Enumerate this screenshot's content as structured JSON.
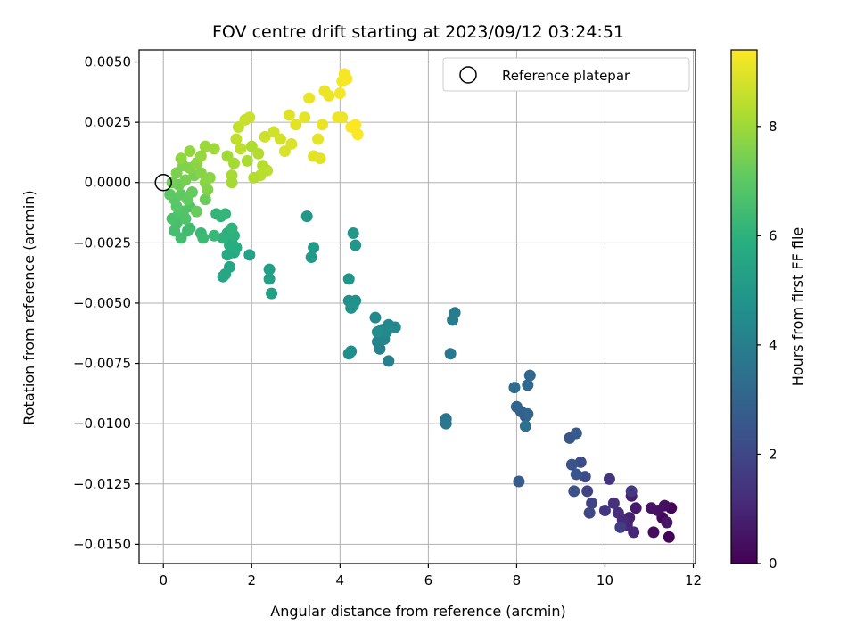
{
  "chart_data": {
    "type": "scatter",
    "title": "FOV centre drift starting at 2023/09/12 03:24:51",
    "xlabel": "Angular distance from reference (arcmin)",
    "ylabel": "Rotation from reference (arcmin)",
    "xlim": [
      -0.55,
      12.05
    ],
    "ylim": [
      -0.0158,
      0.0055
    ],
    "grid": true,
    "x_ticks": [
      0,
      2,
      4,
      6,
      8,
      10,
      12
    ],
    "x_tick_labels": [
      "0",
      "2",
      "4",
      "6",
      "8",
      "10",
      "12"
    ],
    "y_ticks": [
      0.005,
      0.0025,
      0.0,
      -0.0025,
      -0.005,
      -0.0075,
      -0.01,
      -0.0125,
      -0.015
    ],
    "y_tick_labels": [
      "0.0050",
      "0.0025",
      "0.0000",
      "−0.0025",
      "−0.0050",
      "−0.0075",
      "−0.0100",
      "−0.0125",
      "−0.0150"
    ],
    "colorbar": {
      "label": "Hours from first FF file",
      "colormap": "viridis",
      "range": [
        0,
        9.4
      ],
      "ticks": [
        0,
        2,
        4,
        6,
        8
      ],
      "tick_labels": [
        "0",
        "2",
        "4",
        "6",
        "8"
      ]
    },
    "legend": {
      "position": "top-right",
      "entries": [
        "Reference platepar"
      ]
    },
    "reference_point": {
      "x": 0.0,
      "y": 0.0
    },
    "points": [
      [
        11.5,
        -0.0135,
        0.05
      ],
      [
        11.45,
        -0.0147,
        0.1
      ],
      [
        11.3,
        -0.0139,
        0.2
      ],
      [
        11.1,
        -0.0145,
        0.3
      ],
      [
        11.35,
        -0.0134,
        0.35
      ],
      [
        11.2,
        -0.0136,
        0.45
      ],
      [
        11.05,
        -0.0135,
        0.5
      ],
      [
        11.4,
        -0.0141,
        0.6
      ],
      [
        10.7,
        -0.0135,
        0.7
      ],
      [
        10.6,
        -0.013,
        0.8
      ],
      [
        10.55,
        -0.0139,
        0.9
      ],
      [
        10.5,
        -0.0142,
        1.0
      ],
      [
        10.65,
        -0.0145,
        1.05
      ],
      [
        10.4,
        -0.014,
        1.1
      ],
      [
        10.3,
        -0.0137,
        1.2
      ],
      [
        10.2,
        -0.0133,
        1.3
      ],
      [
        10.1,
        -0.0123,
        1.4
      ],
      [
        10.0,
        -0.0136,
        1.5
      ],
      [
        10.6,
        -0.0128,
        1.6
      ],
      [
        10.35,
        -0.0143,
        1.7
      ],
      [
        9.6,
        -0.0128,
        1.8
      ],
      [
        9.7,
        -0.0133,
        1.9
      ],
      [
        9.65,
        -0.0137,
        2.0
      ],
      [
        9.55,
        -0.0122,
        2.1
      ],
      [
        9.45,
        -0.0116,
        2.2
      ],
      [
        9.3,
        -0.0128,
        2.3
      ],
      [
        9.25,
        -0.0117,
        2.4
      ],
      [
        9.35,
        -0.0121,
        2.45
      ],
      [
        9.2,
        -0.0106,
        2.5
      ],
      [
        9.35,
        -0.0104,
        2.6
      ],
      [
        8.05,
        -0.0124,
        2.7
      ],
      [
        8.2,
        -0.0097,
        2.8
      ],
      [
        8.1,
        -0.0095,
        2.9
      ],
      [
        8.0,
        -0.0093,
        3.0
      ],
      [
        8.25,
        -0.0096,
        3.05
      ],
      [
        8.3,
        -0.008,
        3.1
      ],
      [
        8.25,
        -0.0084,
        3.2
      ],
      [
        7.95,
        -0.0085,
        3.3
      ],
      [
        8.2,
        -0.0101,
        3.4
      ],
      [
        6.4,
        -0.0098,
        3.6
      ],
      [
        6.4,
        -0.01,
        3.7
      ],
      [
        6.5,
        -0.0071,
        3.8
      ],
      [
        6.55,
        -0.0057,
        3.85
      ],
      [
        6.6,
        -0.0054,
        3.9
      ],
      [
        5.1,
        -0.0074,
        4.0
      ],
      [
        4.9,
        -0.0069,
        4.1
      ],
      [
        4.85,
        -0.0066,
        4.15
      ],
      [
        5.0,
        -0.0065,
        4.2
      ],
      [
        4.95,
        -0.0061,
        4.25
      ],
      [
        5.1,
        -0.0059,
        4.3
      ],
      [
        5.25,
        -0.006,
        4.35
      ],
      [
        5.05,
        -0.0062,
        4.4
      ],
      [
        4.8,
        -0.0056,
        4.45
      ],
      [
        4.85,
        -0.0062,
        4.5
      ],
      [
        4.2,
        -0.0071,
        4.55
      ],
      [
        4.25,
        -0.007,
        4.6
      ],
      [
        4.2,
        -0.0049,
        4.65
      ],
      [
        4.3,
        -0.0051,
        4.7
      ],
      [
        4.35,
        -0.0049,
        4.75
      ],
      [
        4.25,
        -0.0052,
        4.8
      ],
      [
        4.2,
        -0.004,
        4.85
      ],
      [
        4.35,
        -0.0026,
        4.9
      ],
      [
        4.3,
        -0.0021,
        4.95
      ],
      [
        3.25,
        -0.0014,
        5.0
      ],
      [
        3.35,
        -0.0031,
        5.05
      ],
      [
        3.4,
        -0.0027,
        5.1
      ],
      [
        2.4,
        -0.0036,
        5.2
      ],
      [
        2.45,
        -0.0046,
        5.25
      ],
      [
        2.4,
        -0.004,
        5.3
      ],
      [
        1.95,
        -0.003,
        5.4
      ],
      [
        1.35,
        -0.0039,
        5.5
      ],
      [
        1.4,
        -0.0038,
        5.55
      ],
      [
        1.5,
        -0.0035,
        5.6
      ],
      [
        1.6,
        -0.0029,
        5.65
      ],
      [
        1.45,
        -0.003,
        5.7
      ],
      [
        1.5,
        -0.0026,
        5.75
      ],
      [
        1.65,
        -0.0027,
        5.8
      ],
      [
        1.55,
        -0.0025,
        5.85
      ],
      [
        1.45,
        -0.0021,
        5.9
      ],
      [
        1.6,
        -0.0022,
        5.95
      ],
      [
        1.35,
        -0.0023,
        6.0
      ],
      [
        1.55,
        -0.0019,
        6.05
      ],
      [
        1.3,
        -0.0014,
        6.1
      ],
      [
        1.2,
        -0.0013,
        6.15
      ],
      [
        1.4,
        -0.0013,
        6.2
      ],
      [
        1.15,
        -0.0022,
        6.25
      ],
      [
        0.85,
        -0.0021,
        6.3
      ],
      [
        0.9,
        -0.0023,
        6.35
      ],
      [
        0.6,
        -0.0019,
        6.4
      ],
      [
        0.55,
        -0.002,
        6.45
      ],
      [
        0.4,
        -0.0023,
        6.5
      ],
      [
        0.25,
        -0.002,
        6.55
      ],
      [
        0.3,
        -0.0017,
        6.6
      ],
      [
        0.2,
        -0.0015,
        6.65
      ],
      [
        0.35,
        -0.0013,
        6.7
      ],
      [
        0.5,
        -0.0015,
        6.75
      ],
      [
        0.45,
        -0.0012,
        6.8
      ],
      [
        0.6,
        -0.001,
        6.85
      ],
      [
        0.3,
        -0.001,
        6.9
      ],
      [
        0.25,
        -0.0007,
        6.95
      ],
      [
        0.15,
        -0.0005,
        7.0
      ],
      [
        0.4,
        -0.0005,
        7.05
      ],
      [
        0.55,
        -0.0007,
        7.1
      ],
      [
        0.65,
        -0.0004,
        7.15
      ],
      [
        0.75,
        -0.0012,
        7.2
      ],
      [
        0.95,
        -0.0007,
        7.25
      ],
      [
        0.35,
        -0.0001,
        7.3
      ],
      [
        0.2,
        0.0,
        7.35
      ],
      [
        0.5,
        0.0001,
        7.4
      ],
      [
        0.7,
        0.0003,
        7.45
      ],
      [
        0.3,
        0.0004,
        7.5
      ],
      [
        0.45,
        0.0007,
        7.55
      ],
      [
        0.6,
        0.0006,
        7.6
      ],
      [
        0.85,
        0.0004,
        7.65
      ],
      [
        1.05,
        0.0002,
        7.7
      ],
      [
        0.75,
        0.0008,
        7.75
      ],
      [
        0.4,
        0.001,
        7.8
      ],
      [
        0.6,
        0.0013,
        7.85
      ],
      [
        0.85,
        0.0011,
        7.9
      ],
      [
        0.95,
        0.0015,
        7.95
      ],
      [
        1.15,
        0.0014,
        8.0
      ],
      [
        1.45,
        0.0011,
        8.05
      ],
      [
        1.6,
        0.0008,
        8.1
      ],
      [
        1.55,
        0.0003,
        8.15
      ],
      [
        1.9,
        0.0009,
        8.2
      ],
      [
        2.0,
        0.0015,
        8.25
      ],
      [
        2.15,
        0.0012,
        8.3
      ],
      [
        2.25,
        0.0007,
        8.35
      ],
      [
        2.2,
        0.0003,
        8.4
      ],
      [
        1.75,
        0.0014,
        8.45
      ],
      [
        1.65,
        0.0018,
        8.5
      ],
      [
        1.7,
        0.0023,
        8.55
      ],
      [
        1.85,
        0.0026,
        8.6
      ],
      [
        1.95,
        0.0027,
        8.65
      ],
      [
        2.3,
        0.0019,
        8.7
      ],
      [
        2.5,
        0.0021,
        8.75
      ],
      [
        2.65,
        0.0018,
        8.8
      ],
      [
        2.75,
        0.0013,
        8.85
      ],
      [
        2.9,
        0.0016,
        8.9
      ],
      [
        2.85,
        0.0028,
        8.95
      ],
      [
        3.0,
        0.0024,
        9.0
      ],
      [
        3.2,
        0.0027,
        9.05
      ],
      [
        3.5,
        0.0018,
        9.05
      ],
      [
        3.6,
        0.0024,
        9.1
      ],
      [
        3.3,
        0.0035,
        9.1
      ],
      [
        3.65,
        0.0038,
        9.15
      ],
      [
        3.75,
        0.0036,
        9.15
      ],
      [
        3.95,
        0.0027,
        9.2
      ],
      [
        4.05,
        0.0027,
        9.2
      ],
      [
        4.0,
        0.0037,
        9.25
      ],
      [
        4.05,
        0.0042,
        9.25
      ],
      [
        4.1,
        0.0045,
        9.3
      ],
      [
        4.15,
        0.0043,
        9.3
      ],
      [
        4.25,
        0.0023,
        9.35
      ],
      [
        4.4,
        0.002,
        9.35
      ],
      [
        4.35,
        0.0024,
        9.4
      ],
      [
        3.4,
        0.0011,
        9.0
      ],
      [
        3.55,
        0.001,
        9.0
      ],
      [
        2.35,
        0.0005,
        8.4
      ],
      [
        2.05,
        0.0002,
        8.3
      ],
      [
        1.55,
        0.0,
        8.1
      ],
      [
        0.95,
        0.0,
        7.7
      ],
      [
        1.0,
        -0.0003,
        7.6
      ]
    ]
  }
}
